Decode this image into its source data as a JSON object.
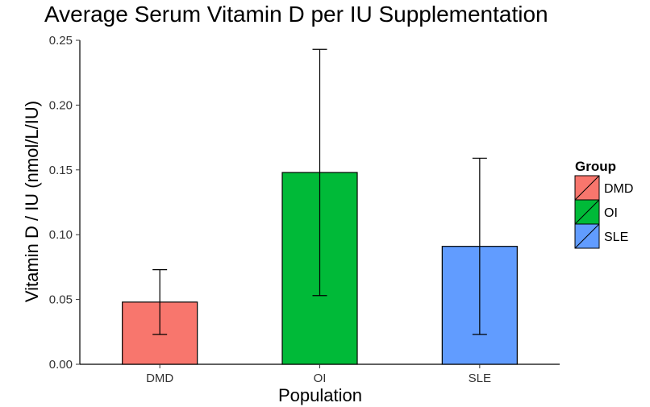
{
  "chart_data": {
    "type": "bar",
    "title": "Average Serum Vitamin D per IU Supplementation",
    "xlabel": "Population",
    "ylabel": "Vitamin D / IU (nmol/L/IU)",
    "categories": [
      "DMD",
      "OI",
      "SLE"
    ],
    "values": [
      0.048,
      0.148,
      0.091
    ],
    "error_low": [
      0.023,
      0.053,
      0.023
    ],
    "error_high": [
      0.073,
      0.243,
      0.159
    ],
    "colors": [
      "#F8766D",
      "#00BA38",
      "#619CFF"
    ],
    "ylim": [
      0,
      0.25
    ],
    "yticks": [
      "0.00",
      "0.05",
      "0.10",
      "0.15",
      "0.20",
      "0.25"
    ],
    "grid": false,
    "legend": {
      "title": "Group",
      "position": "right",
      "items": [
        "DMD",
        "OI",
        "SLE"
      ]
    }
  }
}
